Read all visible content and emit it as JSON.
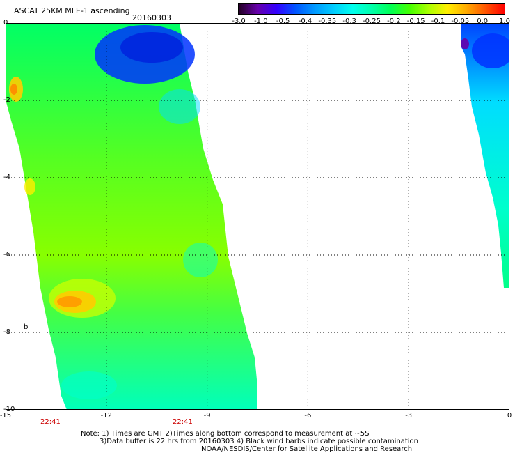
{
  "header": {
    "title": "ASCAT 25KM MLE-1 ascending",
    "date": "20160303"
  },
  "colorbar": {
    "labels": [
      "-3.0",
      "-1.0",
      "-0.5",
      "-0.4",
      "-0.35",
      "-0.3",
      "-0.25",
      "-0.2",
      "-0.15",
      "-0.1",
      "-0.05",
      "0.0",
      "1.0"
    ],
    "colors": [
      "#220022",
      "#6600aa",
      "#3300ff",
      "#0055ff",
      "#0099ff",
      "#00ccff",
      "#00ffee",
      "#00ffaa",
      "#00ff55",
      "#44ff00",
      "#aaff00",
      "#ffee00",
      "#ffaa00",
      "#ff5500",
      "#ff0000"
    ]
  },
  "map": {
    "lon_range": [
      -15,
      0
    ],
    "lat_range": [
      -10,
      0
    ],
    "x_ticks": [
      "-15",
      "-12",
      "-9",
      "-6",
      "-3",
      "0"
    ],
    "y_ticks": [
      "0",
      "-2",
      "-4",
      "-6",
      "-8",
      "-10"
    ],
    "grid": "dotted",
    "swath_times": [
      "22:41",
      "22:41"
    ],
    "marker_letter": "b"
  },
  "notes": {
    "line1": "Note: 1) Times are GMT 2)Times along bottom correspond to measurement at ~5S",
    "line2": "3)Data buffer is 22 hrs from 20160303 4) Black wind barbs indicate possible contamination",
    "line3": "NOAA/NESDIS/Center for Satellite Applications and Research"
  }
}
